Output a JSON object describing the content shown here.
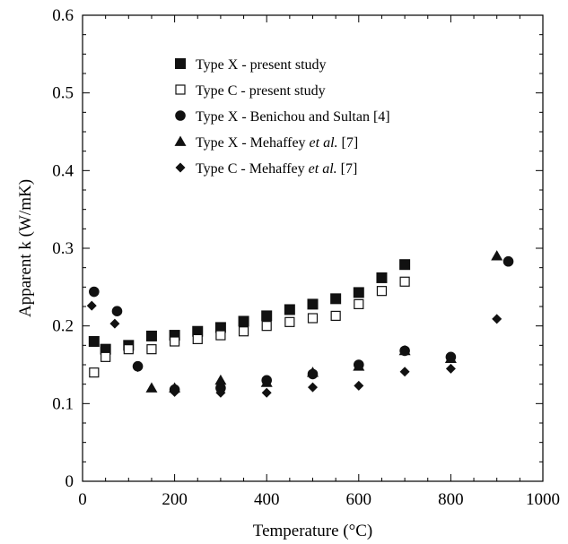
{
  "chart_data": {
    "type": "scatter",
    "xlabel": "Temperature (°C)",
    "ylabel": "Apparent k (W/mK)",
    "xlim": [
      0,
      1000
    ],
    "ylim": [
      0,
      0.6
    ],
    "xticks": [
      "0",
      "200",
      "400",
      "600",
      "800",
      "1000"
    ],
    "yticks": [
      "0",
      "0.1",
      "0.2",
      "0.3",
      "0.4",
      "0.5",
      "0.6"
    ],
    "grid": false,
    "legend_position": "top-center",
    "series": [
      {
        "name_parts": [
          "Type X - present study"
        ],
        "marker": "square-filled",
        "points": [
          [
            25,
            0.18
          ],
          [
            50,
            0.17
          ],
          [
            100,
            0.175
          ],
          [
            150,
            0.187
          ],
          [
            200,
            0.188
          ],
          [
            250,
            0.193
          ],
          [
            300,
            0.198
          ],
          [
            350,
            0.206
          ],
          [
            400,
            0.213
          ],
          [
            450,
            0.221
          ],
          [
            500,
            0.228
          ],
          [
            550,
            0.235
          ],
          [
            600,
            0.243
          ],
          [
            650,
            0.262
          ],
          [
            700,
            0.279
          ]
        ]
      },
      {
        "name_parts": [
          "Type C - present study"
        ],
        "marker": "square-open",
        "points": [
          [
            25,
            0.14
          ],
          [
            50,
            0.16
          ],
          [
            100,
            0.17
          ],
          [
            150,
            0.17
          ],
          [
            200,
            0.18
          ],
          [
            250,
            0.183
          ],
          [
            300,
            0.188
          ],
          [
            350,
            0.193
          ],
          [
            400,
            0.2
          ],
          [
            450,
            0.205
          ],
          [
            500,
            0.21
          ],
          [
            550,
            0.213
          ],
          [
            600,
            0.228
          ],
          [
            650,
            0.245
          ],
          [
            700,
            0.257
          ]
        ]
      },
      {
        "name_parts": [
          "Type X - Benichou and Sultan [4]"
        ],
        "marker": "circle",
        "points": [
          [
            25,
            0.244
          ],
          [
            75,
            0.219
          ],
          [
            120,
            0.148
          ],
          [
            200,
            0.118
          ],
          [
            300,
            0.12
          ],
          [
            400,
            0.13
          ],
          [
            500,
            0.138
          ],
          [
            600,
            0.15
          ],
          [
            700,
            0.168
          ],
          [
            800,
            0.16
          ],
          [
            925,
            0.283
          ]
        ]
      },
      {
        "name_parts": [
          "Type X - Mehaffey ",
          "et al.",
          " [7]"
        ],
        "marker": "triangle",
        "points": [
          [
            150,
            0.12
          ],
          [
            200,
            0.12
          ],
          [
            300,
            0.13
          ],
          [
            400,
            0.127
          ],
          [
            500,
            0.14
          ],
          [
            600,
            0.148
          ],
          [
            700,
            0.168
          ],
          [
            800,
            0.158
          ],
          [
            900,
            0.29
          ]
        ]
      },
      {
        "name_parts": [
          "Type C - Mehaffey ",
          "et al.",
          " [7]"
        ],
        "marker": "diamond",
        "points": [
          [
            20,
            0.226
          ],
          [
            70,
            0.203
          ],
          [
            120,
            0.147
          ],
          [
            200,
            0.115
          ],
          [
            300,
            0.114
          ],
          [
            400,
            0.114
          ],
          [
            500,
            0.121
          ],
          [
            600,
            0.123
          ],
          [
            700,
            0.141
          ],
          [
            800,
            0.145
          ],
          [
            900,
            0.209
          ]
        ]
      }
    ]
  }
}
